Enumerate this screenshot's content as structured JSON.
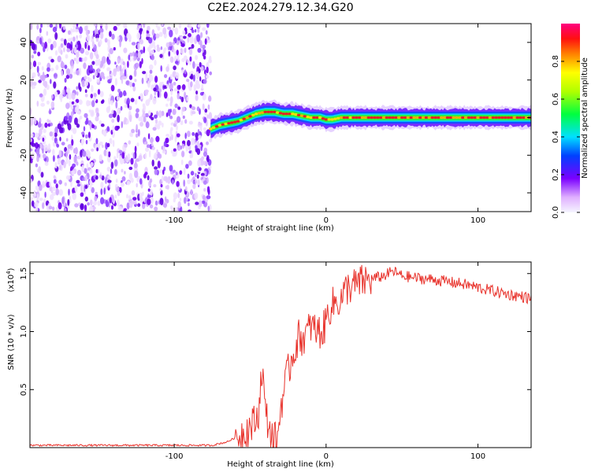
{
  "title": "C2E2.2024.279.12.34.G20",
  "chart_data": [
    {
      "type": "heatmap",
      "xlabel": "Height of straight line (km)",
      "ylabel": "Frequency (Hz)",
      "xlim": [
        -195,
        135
      ],
      "ylim": [
        -50,
        50
      ],
      "x_ticks": [
        -100,
        0,
        100
      ],
      "y_ticks": [
        -40,
        -20,
        0,
        20,
        40
      ],
      "noise_region_x": [
        -195,
        -76
      ],
      "ridge": [
        [
          -76,
          -6
        ],
        [
          -70,
          -4
        ],
        [
          -64,
          -3
        ],
        [
          -58,
          -2
        ],
        [
          -52,
          0
        ],
        [
          -46,
          2
        ],
        [
          -40,
          3
        ],
        [
          -34,
          3
        ],
        [
          -28,
          2
        ],
        [
          -22,
          2
        ],
        [
          -16,
          1
        ],
        [
          -10,
          0
        ],
        [
          -4,
          0
        ],
        [
          0,
          -1
        ],
        [
          4,
          -1
        ],
        [
          10,
          0
        ],
        [
          20,
          0
        ],
        [
          40,
          0
        ],
        [
          60,
          0
        ],
        [
          80,
          0
        ],
        [
          100,
          0
        ],
        [
          120,
          0
        ],
        [
          135,
          0
        ]
      ],
      "colorbar": {
        "label": "Normalized spectral amplitude",
        "range": [
          0.0,
          1.0
        ],
        "ticks": [
          0.0,
          0.2,
          0.4,
          0.6,
          0.8
        ]
      }
    },
    {
      "type": "line",
      "xlabel": "Height of straight line (km)",
      "ylabel": "SNR (10 * v/v)",
      "scale_label": "(x10",
      "scale_exp": "4",
      "xlim": [
        -195,
        135
      ],
      "ylim": [
        0.0,
        1.6
      ],
      "x_ticks": [
        -100,
        0,
        100
      ],
      "y_ticks": [
        0.5,
        1.0,
        1.5
      ],
      "line_color": "#e8322b",
      "profile": [
        [
          -195,
          0.02
        ],
        [
          -150,
          0.02
        ],
        [
          -100,
          0.02
        ],
        [
          -75,
          0.02
        ],
        [
          -65,
          0.05
        ],
        [
          -58,
          0.1
        ],
        [
          -50,
          0.18
        ],
        [
          -45,
          0.25
        ],
        [
          -42,
          0.7
        ],
        [
          -40,
          0.3
        ],
        [
          -36,
          0.1
        ],
        [
          -32,
          0.05
        ],
        [
          -30,
          0.35
        ],
        [
          -26,
          0.6
        ],
        [
          -22,
          0.8
        ],
        [
          -18,
          0.95
        ],
        [
          -14,
          0.95
        ],
        [
          -10,
          1.05
        ],
        [
          -6,
          1.0
        ],
        [
          -2,
          1.0
        ],
        [
          2,
          1.2
        ],
        [
          6,
          1.25
        ],
        [
          10,
          1.28
        ],
        [
          14,
          1.38
        ],
        [
          20,
          1.4
        ],
        [
          26,
          1.44
        ],
        [
          32,
          1.46
        ],
        [
          38,
          1.48
        ],
        [
          44,
          1.52
        ],
        [
          50,
          1.48
        ],
        [
          60,
          1.46
        ],
        [
          70,
          1.45
        ],
        [
          80,
          1.43
        ],
        [
          90,
          1.41
        ],
        [
          100,
          1.38
        ],
        [
          110,
          1.35
        ],
        [
          120,
          1.32
        ],
        [
          130,
          1.3
        ],
        [
          135,
          1.28
        ]
      ]
    }
  ]
}
